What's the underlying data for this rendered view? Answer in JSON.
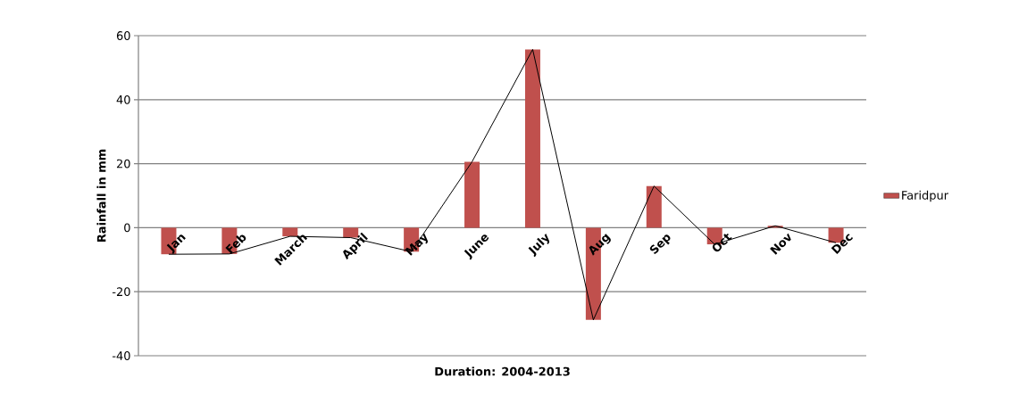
{
  "chart_data": {
    "type": "bar",
    "xlabel": "Duration: 2004-2013",
    "ylabel": "Rainfall in mm",
    "categories": [
      "Jan",
      "Feb",
      "March",
      "April",
      "May",
      "June",
      "July",
      "Aug",
      "Sep",
      "Oct",
      "Nov",
      "Dec"
    ],
    "series": [
      {
        "name": "Faridpur",
        "color": "#c0504d",
        "values": [
          -8.3,
          -8.2,
          -2.7,
          -3.1,
          -7.5,
          20.6,
          55.7,
          -28.8,
          13.0,
          -5.2,
          0.6,
          -4.7
        ]
      },
      {
        "color": "#000000",
        "type": "line",
        "values": [
          -8.3,
          -8.2,
          -2.7,
          -3.1,
          -7.5,
          20.6,
          55.7,
          -28.8,
          13.0,
          -5.2,
          0.6,
          -4.7
        ]
      }
    ],
    "ylim": [
      -40,
      60
    ],
    "yticks": [
      -40,
      -20,
      0,
      20,
      40,
      60
    ],
    "grid": "y",
    "legend": "right"
  }
}
